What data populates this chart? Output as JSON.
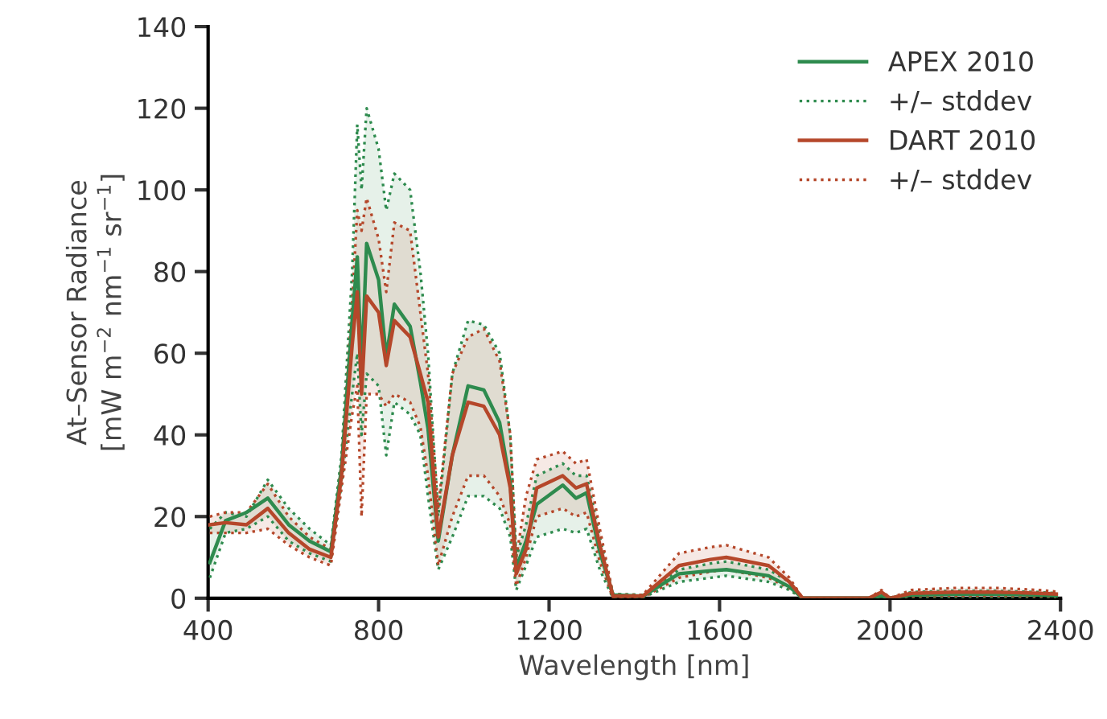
{
  "chart_data": {
    "type": "line",
    "xlabel": "Wavelength [nm]",
    "ylabel": "At–Sensor Radiance\n[mW m$^{−2}$ nm$^{−1}$ sr$^{−1}$]",
    "x": [
      404,
      441,
      490,
      540,
      589,
      638,
      688,
      713,
      738,
      750,
      760,
      772,
      800,
      818,
      837,
      874,
      898,
      916,
      940,
      973,
      1010,
      1047,
      1084,
      1109,
      1123,
      1146,
      1171,
      1232,
      1263,
      1288,
      1319,
      1350,
      1420,
      1505,
      1579,
      1616,
      1715,
      1764,
      1795,
      1850,
      1950,
      1980,
      2000,
      2050,
      2150,
      2250,
      2350,
      2390
    ],
    "xlim": [
      400,
      2400
    ],
    "xticks": [
      400,
      800,
      1200,
      1600,
      2000,
      2400
    ],
    "ylim": [
      0,
      140
    ],
    "yticks": [
      0,
      20,
      40,
      60,
      80,
      100,
      120,
      140
    ],
    "grid": false,
    "legend": "top right",
    "series": [
      {
        "name": "APEX 2010",
        "color": "#2e8b4e",
        "line_style": "solid",
        "values": [
          8.7,
          19,
          21,
          24.5,
          18,
          14,
          11.4,
          32,
          68,
          83.6,
          55,
          86.9,
          78,
          59,
          72,
          66.6,
          53,
          41.5,
          14,
          35,
          52,
          51,
          43,
          28,
          7.5,
          14,
          23,
          27.7,
          24.5,
          25.8,
          11.4,
          0.8,
          0.5,
          6,
          6.7,
          7,
          5.5,
          2.8,
          0,
          0,
          0,
          0.5,
          0,
          0.8,
          1,
          1,
          0.8,
          0.6
        ],
        "upper": [
          17,
          21,
          20,
          29,
          22,
          17,
          13,
          35,
          80,
          116,
          100,
          120,
          110,
          95,
          104,
          100,
          80,
          60,
          20,
          55,
          68,
          67,
          60,
          40,
          10,
          18,
          30,
          33,
          30,
          30,
          15,
          1,
          0.8,
          7,
          8.5,
          9,
          7,
          4,
          0,
          0,
          0,
          1,
          0,
          1.5,
          1.8,
          1.8,
          1.5,
          1.2
        ],
        "lower": [
          5,
          16,
          17,
          20,
          14,
          11,
          9,
          28,
          50,
          60,
          40,
          55,
          52,
          35,
          48,
          45,
          40,
          25,
          7,
          15,
          25,
          25,
          22,
          15,
          2,
          8,
          15,
          17,
          16,
          17,
          7,
          0,
          0.2,
          4,
          5,
          5.5,
          4,
          2,
          0,
          0,
          0,
          0,
          0,
          0.3,
          0.3,
          0.3,
          0.2,
          0.2
        ]
      },
      {
        "name": "+/– stddev",
        "color": "#2e8b4e",
        "line_style": "dotted",
        "values": [
          17,
          21,
          20,
          29,
          22,
          17,
          13,
          35,
          80,
          116,
          100,
          120,
          110,
          95,
          104,
          100,
          80,
          60,
          20,
          55,
          68,
          67,
          60,
          40,
          10,
          18,
          30,
          33,
          30,
          30,
          15,
          1,
          0.8,
          7,
          8.5,
          9,
          7,
          4,
          0,
          0,
          0,
          1,
          0,
          1.5,
          1.8,
          1.8,
          1.5,
          1.2
        ]
      },
      {
        "color": "#2e8b4e",
        "line_style": "dotted",
        "values": [
          5,
          16,
          17,
          20,
          14,
          11,
          9,
          28,
          50,
          60,
          40,
          55,
          52,
          35,
          48,
          45,
          40,
          25,
          7,
          15,
          25,
          25,
          22,
          15,
          2,
          8,
          15,
          17,
          16,
          17,
          7,
          0,
          0.2,
          4,
          5,
          5.5,
          4,
          2,
          0,
          0,
          0,
          0,
          0,
          0.3,
          0.3,
          0.3,
          0.2,
          0.2
        ]
      },
      {
        "name": "DART 2010",
        "color": "#b5472a",
        "line_style": "solid",
        "values": [
          18,
          18.5,
          18,
          22,
          16,
          12,
          10,
          30,
          62,
          75,
          50,
          74,
          70,
          57,
          68,
          64,
          55,
          48,
          15,
          35,
          48,
          47,
          40,
          27,
          6,
          12,
          27,
          30,
          27,
          28,
          13,
          0.5,
          0.5,
          8,
          9.5,
          10,
          8,
          4,
          0,
          0,
          0,
          1.5,
          0,
          1.2,
          1.5,
          1.5,
          1.2,
          1
        ],
        "upper": [
          20,
          21,
          21,
          28,
          20,
          15,
          12,
          33,
          72,
          95,
          90,
          98,
          88,
          75,
          92,
          90,
          70,
          55,
          22,
          55,
          64,
          66,
          58,
          40,
          10,
          25,
          34,
          36,
          33,
          34,
          17,
          1,
          0.8,
          11,
          12.5,
          13,
          10,
          5,
          0,
          0,
          0,
          2,
          0,
          2,
          2.5,
          2.5,
          2,
          1.6
        ],
        "lower": [
          16,
          16,
          16,
          17,
          13,
          10,
          8,
          27,
          45,
          52,
          20,
          50,
          50,
          47,
          50,
          48,
          42,
          30,
          8,
          20,
          30,
          30,
          25,
          18,
          3,
          10,
          20,
          22,
          20,
          21,
          9,
          0,
          0.2,
          5,
          6.5,
          7,
          5,
          2.5,
          0,
          0,
          0,
          0.5,
          0,
          0.5,
          0.6,
          0.6,
          0.5,
          0.4
        ]
      },
      {
        "name": "+/– stddev",
        "color": "#b5472a",
        "line_style": "dotted",
        "values": [
          20,
          21,
          21,
          28,
          20,
          15,
          12,
          33,
          72,
          95,
          90,
          98,
          88,
          75,
          92,
          90,
          70,
          55,
          22,
          55,
          64,
          66,
          58,
          40,
          10,
          25,
          34,
          36,
          33,
          34,
          17,
          1,
          0.8,
          11,
          12.5,
          13,
          10,
          5,
          0,
          0,
          0,
          2,
          0,
          2,
          2.5,
          2.5,
          2,
          1.6
        ]
      },
      {
        "color": "#b5472a",
        "line_style": "dotted",
        "values": [
          16,
          16,
          16,
          17,
          13,
          10,
          8,
          27,
          45,
          52,
          20,
          50,
          50,
          47,
          50,
          48,
          42,
          30,
          8,
          20,
          30,
          30,
          25,
          18,
          3,
          10,
          20,
          22,
          20,
          21,
          9,
          0,
          0.2,
          5,
          6.5,
          7,
          5,
          2.5,
          0,
          0,
          0,
          0.5,
          0,
          0.5,
          0.6,
          0.6,
          0.5,
          0.4
        ]
      }
    ]
  }
}
